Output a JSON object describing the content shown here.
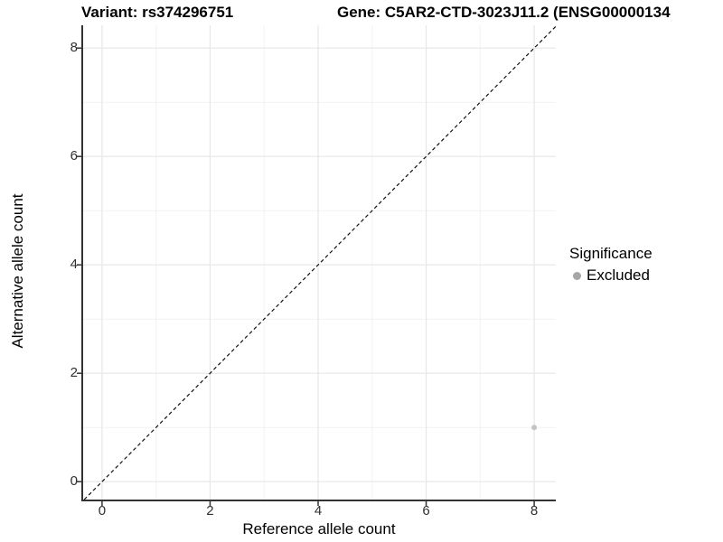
{
  "titles": {
    "variant": "Variant: rs374296751",
    "gene": "Gene: C5AR2-CTD-3023J11.2 (ENSG00000134"
  },
  "axes": {
    "x_label": "Reference allele count",
    "y_label": "Alternative allele count",
    "x_tick_labels": [
      "0",
      "2",
      "4",
      "6",
      "8"
    ],
    "y_tick_labels": [
      "0",
      "2",
      "4",
      "6",
      "8"
    ]
  },
  "legend": {
    "title": "Significance",
    "items": [
      {
        "label": "Excluded",
        "marker": "circle-icon",
        "color": "#a6a6a6"
      }
    ]
  },
  "colors": {
    "background": "#ffffff",
    "axis_line": "#333333",
    "tick_label": "#303030",
    "grid_major": "#e6e6e6",
    "grid_minor": "#f2f2f2",
    "reference_line": "#111111",
    "point": "#c4c4c4"
  },
  "chart_data": {
    "type": "scatter",
    "title": "Variant: rs374296751 / Gene: C5AR2-CTD-3023J11.2 (ENSG00000134...)",
    "xlabel": "Reference allele count",
    "ylabel": "Alternative allele count",
    "xlim": [
      -0.35,
      8.4
    ],
    "ylim": [
      -0.33,
      8.42
    ],
    "x_major_ticks": [
      0,
      2,
      4,
      6,
      8
    ],
    "y_major_ticks": [
      0,
      2,
      4,
      6,
      8
    ],
    "x_minor_ticks": [
      1,
      3,
      5,
      7
    ],
    "y_minor_ticks": [
      1,
      3,
      5,
      7
    ],
    "grid": "major+minor",
    "legend_position": "right",
    "series": [
      {
        "name": "Excluded",
        "color": "#c4c4c4",
        "points": [
          {
            "x": 8,
            "y": 1
          }
        ]
      }
    ],
    "reference_line": {
      "type": "identity",
      "slope": 1,
      "intercept": 0,
      "style": "dashed",
      "color": "#111111"
    }
  }
}
